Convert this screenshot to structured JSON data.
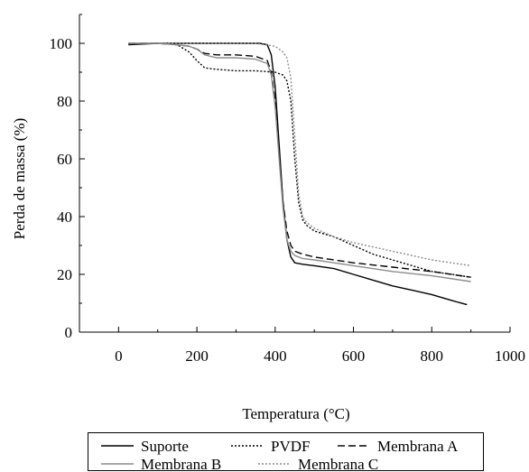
{
  "chart_data": {
    "type": "line",
    "title": "",
    "xlabel": "Temperatura (°C)",
    "ylabel": "Perda de massa (%)",
    "xlim": [
      -100,
      1000
    ],
    "ylim": [
      0,
      110
    ],
    "xticks": [
      0,
      200,
      400,
      600,
      800,
      1000
    ],
    "yticks": [
      0,
      20,
      40,
      60,
      80,
      100
    ],
    "grid": false,
    "legend": "bottom",
    "series": [
      {
        "name": "Suporte",
        "color": "#000000",
        "dash": "solid",
        "x": [
          25,
          100,
          200,
          300,
          360,
          380,
          390,
          400,
          410,
          420,
          430,
          440,
          450,
          470,
          500,
          550,
          600,
          650,
          700,
          750,
          800,
          850,
          890
        ],
        "y": [
          99.5,
          100,
          100,
          100,
          100,
          99.5,
          96,
          85,
          65,
          45,
          32,
          26,
          24,
          23.5,
          23,
          22,
          20,
          18,
          16,
          14.5,
          13,
          11,
          9.5
        ]
      },
      {
        "name": "PVDF",
        "color": "#000000",
        "dash": "dotted",
        "x": [
          25,
          100,
          150,
          180,
          200,
          220,
          250,
          300,
          350,
          400,
          420,
          430,
          440,
          450,
          460,
          470,
          480,
          500,
          550,
          600,
          650,
          700,
          800,
          900
        ],
        "y": [
          100,
          100,
          99.5,
          97,
          94,
          91.5,
          91,
          90.5,
          90.5,
          90,
          89,
          87,
          80,
          60,
          45,
          39,
          37,
          35,
          33,
          30,
          27,
          25,
          21,
          19
        ]
      },
      {
        "name": "Membrana A",
        "color": "#000000",
        "dash": "dashed",
        "x": [
          25,
          100,
          150,
          180,
          200,
          220,
          250,
          300,
          350,
          380,
          390,
          400,
          410,
          420,
          430,
          440,
          450,
          470,
          500,
          550,
          600,
          700,
          800,
          900
        ],
        "y": [
          100,
          100,
          99.5,
          99,
          98,
          96.5,
          96,
          96,
          95.5,
          94,
          90,
          80,
          62,
          45,
          35,
          30,
          28,
          27,
          26,
          25,
          24,
          22.5,
          21,
          19
        ]
      },
      {
        "name": "Membrana B",
        "color": "#8c8c8c",
        "dash": "solid",
        "x": [
          25,
          100,
          150,
          180,
          200,
          220,
          250,
          300,
          350,
          380,
          390,
          400,
          410,
          420,
          430,
          440,
          450,
          470,
          500,
          550,
          600,
          700,
          800,
          900
        ],
        "y": [
          100,
          100,
          99.5,
          99,
          98,
          96,
          95,
          95,
          94.5,
          93,
          89,
          78,
          60,
          43,
          32,
          28,
          26.5,
          25.5,
          25,
          24,
          23,
          21,
          19.5,
          17.5
        ]
      },
      {
        "name": "Membrana C",
        "color": "#8c8c8c",
        "dash": "dotted",
        "x": [
          25,
          100,
          200,
          300,
          350,
          400,
          420,
          430,
          440,
          450,
          460,
          470,
          480,
          500,
          550,
          600,
          700,
          800,
          900
        ],
        "y": [
          100,
          100,
          100,
          100,
          100,
          99,
          97,
          95,
          88,
          68,
          48,
          40,
          38,
          36,
          33,
          31,
          28,
          25,
          23
        ]
      }
    ]
  }
}
